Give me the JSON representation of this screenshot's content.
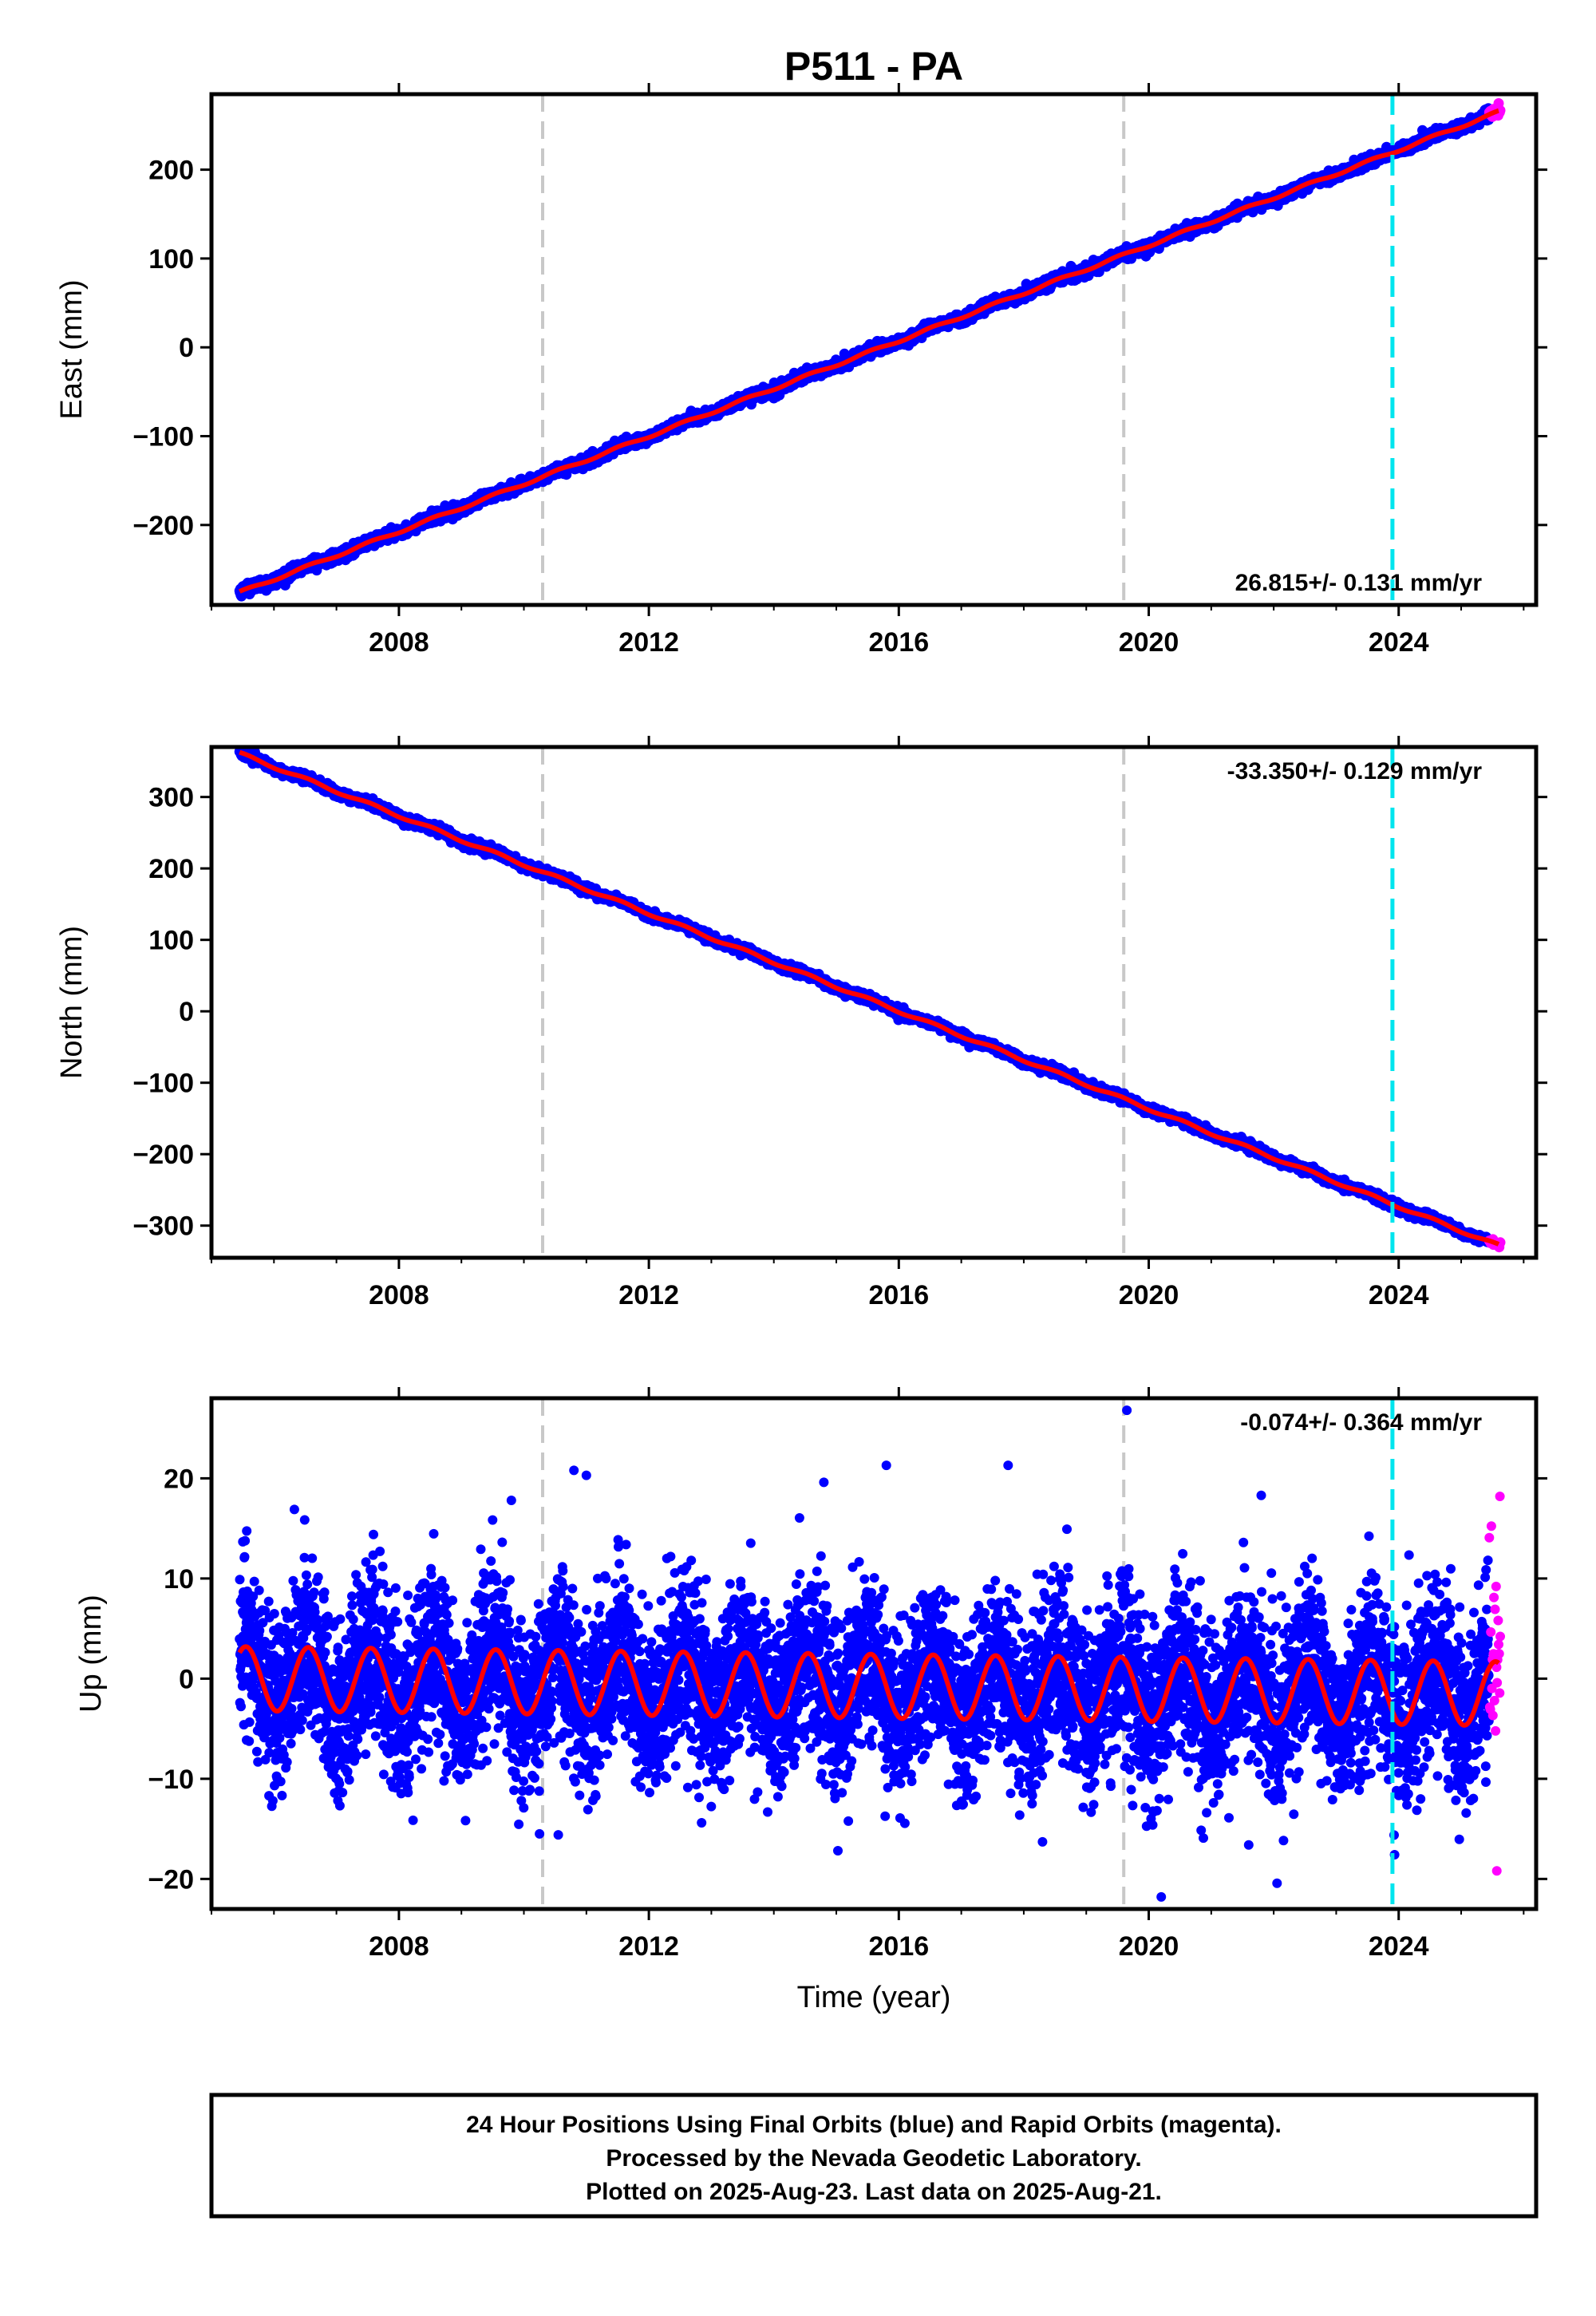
{
  "figure": {
    "title": "P511 - PA",
    "x_axis_label": "Time (year)",
    "footer_lines": [
      "24 Hour Positions Using Final Orbits (blue) and Rapid Orbits (magenta).",
      "Processed by the Nevada Geodetic Laboratory.",
      "Plotted on 2025-Aug-23. Last data on 2025-Aug-21."
    ]
  },
  "colors": {
    "final_orbits": "#0000ff",
    "rapid_orbits": "#ff00ff",
    "model_fit": "#ff0000",
    "equipment_change": "#c8c8c8",
    "event_line": "#00e5ee"
  },
  "chart_data": [
    {
      "type": "scatter",
      "title": "",
      "xlabel": "",
      "ylabel": "East (mm)",
      "xlim": [
        2005.0,
        2026.2
      ],
      "ylim": [
        -290,
        285
      ],
      "xticks": [
        2008,
        2012,
        2016,
        2020,
        2024
      ],
      "yticks": [
        -200,
        -100,
        0,
        100,
        200
      ],
      "tick_labels": [
        "2008",
        "2012",
        "2016",
        "2020",
        "2024"
      ],
      "ytick_labels": [
        "−200",
        "−100",
        "0",
        "100",
        "200"
      ],
      "rate_text": "26.815+/- 0.131 mm/yr",
      "rate_position": "bottom-right",
      "grid": false,
      "trend": {
        "start": [
          2005.45,
          -276
        ],
        "end": [
          2025.6,
          265
        ]
      },
      "seasonal_amplitude": 1.5,
      "scatter_noise": 3,
      "gray_lines": [
        2010.3,
        2019.6
      ],
      "cyan_lines": [
        2023.9
      ],
      "rapid_range": [
        2025.45,
        2025.63
      ],
      "series": [
        {
          "name": "Final Orbits",
          "values": "daily positions 2005.5-2025.45"
        },
        {
          "name": "Rapid Orbits",
          "values": "daily positions 2025.45-2025.63"
        }
      ]
    },
    {
      "type": "scatter",
      "title": "",
      "xlabel": "",
      "ylabel": "North (mm)",
      "xlim": [
        2005.0,
        2026.2
      ],
      "ylim": [
        -345,
        370
      ],
      "xticks": [
        2008,
        2012,
        2016,
        2020,
        2024
      ],
      "yticks": [
        -300,
        -200,
        -100,
        0,
        100,
        200,
        300
      ],
      "tick_labels": [
        "2008",
        "2012",
        "2016",
        "2020",
        "2024"
      ],
      "ytick_labels": [
        "−300",
        "−200",
        "−100",
        "0",
        "100",
        "200",
        "300"
      ],
      "rate_text": "-33.350+/- 0.129 mm/yr",
      "rate_position": "top-right",
      "grid": false,
      "trend": {
        "start": [
          2005.45,
          361
        ],
        "end": [
          2025.6,
          -328
        ]
      },
      "seasonal_amplitude": 2,
      "scatter_noise": 3,
      "gray_lines": [
        2010.3,
        2019.6
      ],
      "cyan_lines": [
        2023.9
      ],
      "rapid_range": [
        2025.45,
        2025.63
      ],
      "series": [
        {
          "name": "Final Orbits",
          "values": "daily positions 2005.5-2025.45"
        },
        {
          "name": "Rapid Orbits",
          "values": "daily positions 2025.45-2025.63"
        }
      ]
    },
    {
      "type": "scatter",
      "title": "",
      "xlabel": "Time (year)",
      "ylabel": "Up (mm)",
      "xlim": [
        2005.0,
        2026.2
      ],
      "ylim": [
        -23,
        28
      ],
      "xticks": [
        2008,
        2012,
        2016,
        2020,
        2024
      ],
      "yticks": [
        -20,
        -10,
        0,
        10,
        20
      ],
      "tick_labels": [
        "2008",
        "2012",
        "2016",
        "2020",
        "2024"
      ],
      "ytick_labels": [
        "−20",
        "−10",
        "0",
        "10",
        "20"
      ],
      "rate_text": "-0.074+/- 0.364 mm/yr",
      "rate_position": "top-right",
      "grid": false,
      "trend": {
        "start": [
          2005.45,
          0.0
        ],
        "end": [
          2025.6,
          -1.5
        ]
      },
      "seasonal_amplitude": 3.2,
      "scatter_noise": 4.2,
      "gray_lines": [
        2010.3,
        2019.6
      ],
      "cyan_lines": [
        2023.9
      ],
      "rapid_range": [
        2025.45,
        2025.63
      ],
      "outliers": [
        [
          2019.65,
          26.8
        ],
        [
          2010.8,
          20.8
        ],
        [
          2011.0,
          20.3
        ],
        [
          2015.8,
          21.3
        ],
        [
          2017.75,
          21.3
        ],
        [
          2014.8,
          19.6
        ],
        [
          2009.8,
          17.8
        ],
        [
          2021.8,
          18.3
        ],
        [
          2020.2,
          -21.8
        ],
        [
          2021.6,
          -16.6
        ],
        [
          2018.3,
          -16.3
        ],
        [
          2010.25,
          -15.5
        ],
        [
          2010.55,
          -15.6
        ],
        [
          2025.57,
          -19.2
        ],
        [
          2025.62,
          18.2
        ]
      ],
      "series": [
        {
          "name": "Final Orbits",
          "values": "daily positions 2005.5-2025.45"
        },
        {
          "name": "Rapid Orbits",
          "values": "daily positions 2025.45-2025.63"
        }
      ]
    }
  ]
}
